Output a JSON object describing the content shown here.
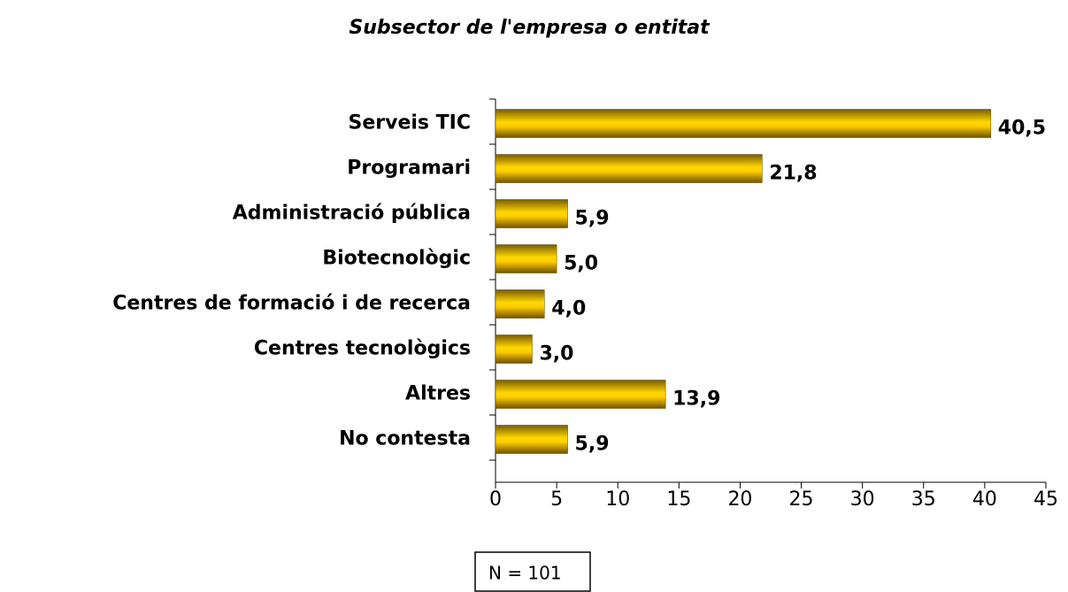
{
  "chart_data": {
    "type": "bar",
    "orientation": "horizontal",
    "title": "Subsector de l'empresa o entitat",
    "categories": [
      "Serveis TIC",
      "Programari",
      "Administració pública",
      "Biotecnològic",
      "Centres de formació i de recerca",
      "Centres tecnològics",
      "Altres",
      "No contesta"
    ],
    "values": [
      40.5,
      21.8,
      5.9,
      5.0,
      4.0,
      3.0,
      13.9,
      5.9
    ],
    "value_labels": [
      "40,5",
      "21,8",
      "5,9",
      "5,0",
      "4,0",
      "3,0",
      "13,9",
      "5,9"
    ],
    "color": "#ffcc00",
    "xlim": [
      0,
      45
    ],
    "xticks": [
      0,
      5,
      10,
      15,
      20,
      25,
      30,
      35,
      40,
      45
    ],
    "annotation": "N = 101"
  }
}
